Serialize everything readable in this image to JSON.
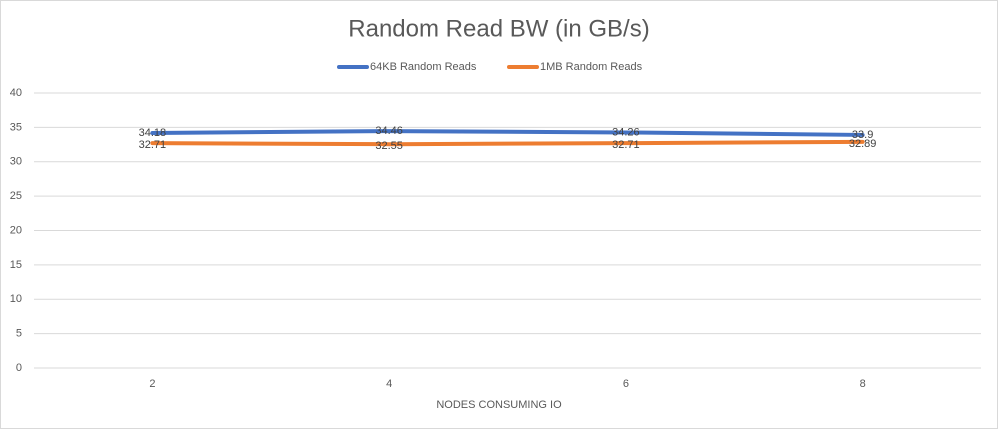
{
  "chart_data": {
    "type": "line",
    "title": "Random Read BW (in GB/s)",
    "x_label": "NODES CONSUMING IO",
    "categories": [
      "2",
      "4",
      "6",
      "8"
    ],
    "series": [
      {
        "name": "64KB Random Reads",
        "color": "#4472c4",
        "values": [
          34.18,
          34.46,
          34.26,
          33.9
        ]
      },
      {
        "name": "1MB Random Reads",
        "color": "#ed7d31",
        "values": [
          32.71,
          32.55,
          32.71,
          32.89
        ]
      }
    ],
    "ylim": [
      0,
      40
    ],
    "yticks": [
      0,
      5,
      10,
      15,
      20,
      25,
      30,
      35,
      40
    ],
    "grid": true,
    "legend": "top"
  }
}
